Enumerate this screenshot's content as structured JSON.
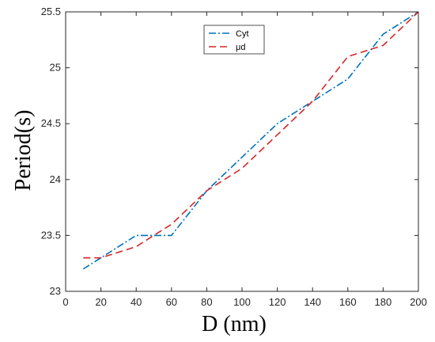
{
  "chart_data": {
    "type": "line",
    "title": "",
    "xlabel": "D (nm)",
    "ylabel": "Period(s)",
    "xlim": [
      0,
      200
    ],
    "ylim": [
      23,
      25.5
    ],
    "xticks": [
      0,
      20,
      40,
      60,
      80,
      100,
      120,
      140,
      160,
      180,
      200
    ],
    "yticks": [
      23,
      23.5,
      24,
      24.5,
      25,
      25.5
    ],
    "xtick_labels": [
      "0",
      "20",
      "40",
      "60",
      "80",
      "100",
      "120",
      "140",
      "160",
      "180",
      "200"
    ],
    "ytick_labels": [
      "23",
      "23.5",
      "24",
      "24.5",
      "25",
      "25.5"
    ],
    "grid": false,
    "legend_position": "top-center",
    "series": [
      {
        "name": "Cyt",
        "color": "#0072BD",
        "style": "dash-dot",
        "x": [
          10,
          20,
          40,
          60,
          80,
          100,
          120,
          140,
          160,
          180,
          200
        ],
        "y": [
          23.2,
          23.3,
          23.5,
          23.5,
          23.9,
          24.2,
          24.5,
          24.7,
          24.9,
          25.3,
          25.5
        ]
      },
      {
        "name": "μd",
        "color": "#D62728",
        "style": "dashed",
        "x": [
          10,
          20,
          40,
          60,
          80,
          100,
          120,
          140,
          160,
          180,
          200
        ],
        "y": [
          23.3,
          23.3,
          23.4,
          23.6,
          23.9,
          24.1,
          24.4,
          24.7,
          25.1,
          25.2,
          25.5
        ]
      }
    ]
  }
}
